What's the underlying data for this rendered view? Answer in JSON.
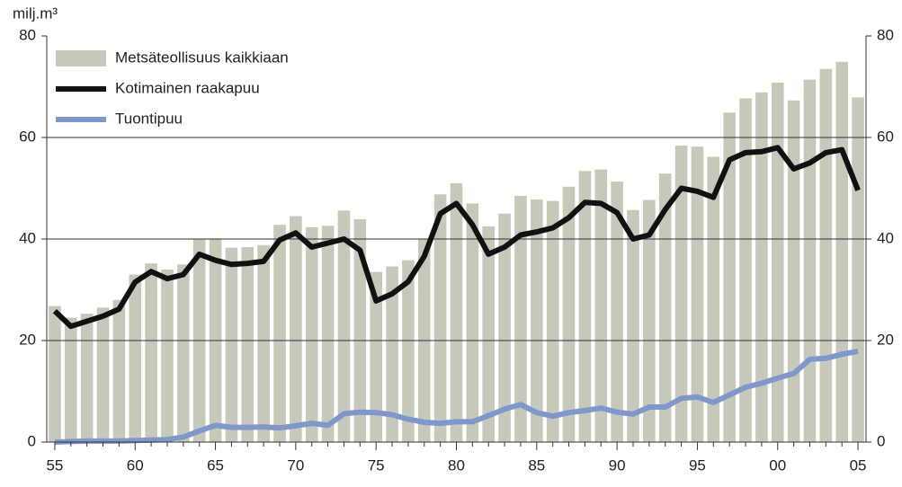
{
  "chart_data": {
    "type": "bar-line",
    "y_unit_label": "milj.m³",
    "categories": [
      "55",
      null,
      null,
      null,
      null,
      "60",
      null,
      null,
      null,
      null,
      "65",
      null,
      null,
      null,
      null,
      "70",
      null,
      null,
      null,
      null,
      "75",
      null,
      null,
      null,
      null,
      "80",
      null,
      null,
      null,
      null,
      "85",
      null,
      null,
      null,
      null,
      "90",
      null,
      null,
      null,
      null,
      "95",
      null,
      null,
      null,
      null,
      "00",
      null,
      null,
      null,
      null,
      "05"
    ],
    "series": [
      {
        "name": "Metsäteollisuus kaikkiaan",
        "type": "bar",
        "color": "#c5c9ba",
        "values": [
          26.8,
          24.5,
          25.3,
          26.5,
          28,
          33,
          35.2,
          34,
          35,
          40,
          40,
          38.3,
          38.4,
          38.8,
          42.8,
          44.5,
          42.3,
          42.6,
          45.6,
          43.9,
          33.5,
          34.6,
          35.8,
          40,
          48.8,
          51,
          47,
          42.5,
          45,
          48.5,
          47.8,
          47.5,
          50.3,
          53.4,
          53.7,
          51.3,
          45.7,
          47.7,
          52.9,
          58.4,
          58.2,
          56.2,
          64.9,
          67.7,
          68.9,
          70.8,
          67.3,
          71.4,
          73.5,
          74.9,
          67.9
        ]
      },
      {
        "name": "Kotimainen raakapuu",
        "type": "line",
        "color": "#111111",
        "values": [
          25.8,
          22.8,
          23.8,
          24.8,
          26.2,
          31.5,
          33.6,
          32.2,
          33,
          37,
          35.8,
          35,
          35.2,
          35.6,
          39.8,
          41.2,
          38.4,
          39.2,
          40,
          37.8,
          27.8,
          29.2,
          31.6,
          36.6,
          45,
          47,
          42.8,
          37,
          38.4,
          40.8,
          41.4,
          42.2,
          44.2,
          47.2,
          47,
          45.2,
          40,
          40.8,
          45.8,
          50,
          49.4,
          48.2,
          55.6,
          57,
          57.2,
          58,
          53.8,
          55,
          57,
          57.6,
          49.6
        ]
      },
      {
        "name": "Tuontipuu",
        "type": "line",
        "color": "#8097c9",
        "values": [
          0,
          0.1,
          0.2,
          0.2,
          0.2,
          0.3,
          0.4,
          0.5,
          1,
          2.2,
          3.3,
          2.9,
          2.9,
          3,
          2.8,
          3.2,
          3.7,
          3.3,
          5.6,
          5.9,
          5.8,
          5.4,
          4.5,
          3.9,
          3.7,
          4,
          4,
          5.2,
          6.5,
          7.4,
          5.8,
          5.1,
          5.8,
          6.2,
          6.7,
          5.9,
          5.5,
          6.9,
          6.9,
          8.6,
          8.9,
          7.8,
          9.3,
          10.8,
          11.6,
          12.6,
          13.5,
          16.3,
          16.5,
          17.3,
          17.9
        ]
      }
    ],
    "ylim": [
      0,
      80
    ],
    "yticks": [
      0,
      20,
      40,
      60,
      80
    ],
    "y2lim": [
      0,
      80
    ],
    "y2ticks": [
      0,
      20,
      40,
      60,
      80
    ],
    "grid": true,
    "legend": "top-left"
  }
}
